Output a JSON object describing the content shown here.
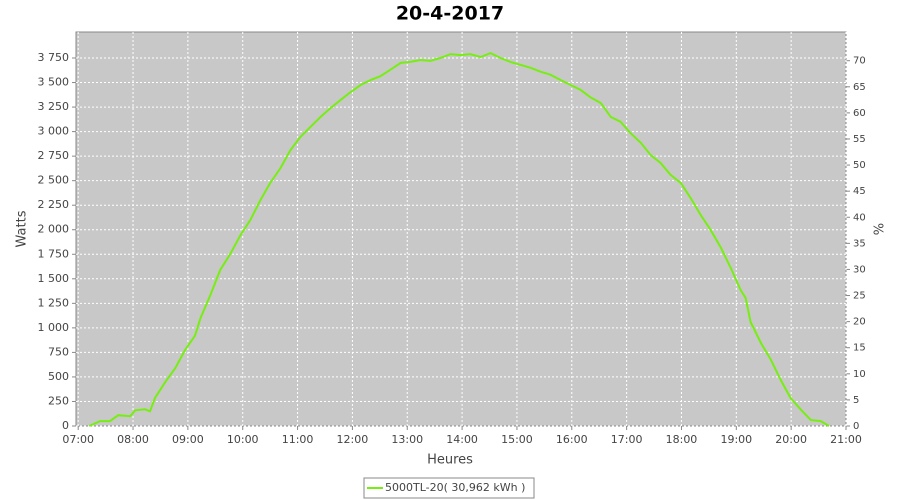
{
  "chart_data": {
    "type": "line",
    "title": "20-4-2017",
    "x_label": "Heures",
    "y_label": "Watts",
    "y2_label": "%",
    "x": [
      7.2,
      7.4,
      7.58,
      7.73,
      7.95,
      8.04,
      8.22,
      8.31,
      8.4,
      8.59,
      8.77,
      8.95,
      9.13,
      9.23,
      9.41,
      9.59,
      9.77,
      9.96,
      10.14,
      10.32,
      10.5,
      10.69,
      10.87,
      11.05,
      11.23,
      11.42,
      11.6,
      11.78,
      11.96,
      12.15,
      12.33,
      12.51,
      12.69,
      12.88,
      13.06,
      13.24,
      13.42,
      13.6,
      13.79,
      13.97,
      14.15,
      14.34,
      14.52,
      14.7,
      14.88,
      15.07,
      15.25,
      15.43,
      15.61,
      15.8,
      15.98,
      16.16,
      16.34,
      16.53,
      16.71,
      16.89,
      17.07,
      17.26,
      17.44,
      17.62,
      17.8,
      17.99,
      18.17,
      18.35,
      18.53,
      18.72,
      18.9,
      19.08,
      19.17,
      19.26,
      19.45,
      19.63,
      19.81,
      19.99,
      20.18,
      20.36,
      20.54,
      20.69
    ],
    "series": [
      {
        "name": "5000TL-20( 30,962 kWh )",
        "color": "#77ee11",
        "values": [
          0,
          50,
          50,
          110,
          100,
          160,
          170,
          150,
          285,
          450,
          590,
          775,
          920,
          1100,
          1335,
          1590,
          1750,
          1945,
          2100,
          2300,
          2475,
          2630,
          2810,
          2945,
          3045,
          3150,
          3240,
          3320,
          3400,
          3475,
          3525,
          3565,
          3630,
          3700,
          3710,
          3730,
          3720,
          3750,
          3790,
          3780,
          3790,
          3760,
          3800,
          3750,
          3710,
          3680,
          3650,
          3610,
          3580,
          3525,
          3475,
          3425,
          3350,
          3290,
          3150,
          3100,
          2985,
          2885,
          2760,
          2680,
          2560,
          2475,
          2320,
          2150,
          2000,
          1815,
          1610,
          1385,
          1305,
          1060,
          845,
          675,
          470,
          285,
          165,
          60,
          50,
          0
        ]
      }
    ],
    "xlim": [
      6.96,
      21.0
    ],
    "xticks": [
      {
        "value": 7,
        "label": "07:00"
      },
      {
        "value": 8,
        "label": "08:00"
      },
      {
        "value": 9,
        "label": "09:00"
      },
      {
        "value": 10,
        "label": "10:00"
      },
      {
        "value": 11,
        "label": "11:00"
      },
      {
        "value": 12,
        "label": "12:00"
      },
      {
        "value": 13,
        "label": "13:00"
      },
      {
        "value": 14,
        "label": "14:00"
      },
      {
        "value": 15,
        "label": "15:00"
      },
      {
        "value": 16,
        "label": "16:00"
      },
      {
        "value": 17,
        "label": "17:00"
      },
      {
        "value": 18,
        "label": "18:00"
      },
      {
        "value": 19,
        "label": "19:00"
      },
      {
        "value": 20,
        "label": "20:00"
      },
      {
        "value": 21,
        "label": "21:00"
      }
    ],
    "ylim": [
      0,
      4015
    ],
    "yticks": [
      0,
      250,
      500,
      750,
      {
        "value": 1000,
        "label": "1 000"
      },
      {
        "value": 1250,
        "label": "1 250"
      },
      {
        "value": 1500,
        "label": "1 500"
      },
      {
        "value": 1750,
        "label": "1 750"
      },
      {
        "value": 2000,
        "label": "2 000"
      },
      {
        "value": 2250,
        "label": "2 250"
      },
      {
        "value": 2500,
        "label": "2 500"
      },
      {
        "value": 2750,
        "label": "2 750"
      },
      {
        "value": 3000,
        "label": "3 000"
      },
      {
        "value": 3250,
        "label": "3 250"
      },
      {
        "value": 3500,
        "label": "3 500"
      },
      {
        "value": 3750,
        "label": "3 750"
      }
    ],
    "y2lim": [
      0,
      75.5
    ],
    "y2ticks": [
      0,
      5,
      10,
      15,
      20,
      25,
      30,
      35,
      40,
      45,
      50,
      55,
      60,
      65,
      70
    ],
    "grid": true,
    "legend": "bottom"
  }
}
